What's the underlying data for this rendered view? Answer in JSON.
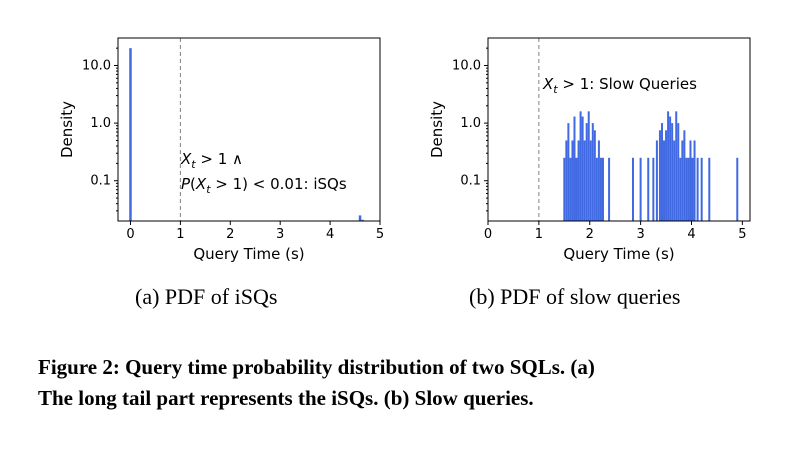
{
  "chart_data": [
    {
      "type": "bar",
      "id": "left",
      "subcaption": "(a)  PDF of iSQs",
      "xlabel": "Query Time (s)",
      "ylabel": "Density",
      "xlim": [
        -0.25,
        5.0
      ],
      "ylim_log": [
        0.02,
        30
      ],
      "yscale": "log",
      "xticks": [
        "0",
        "1",
        "2",
        "3",
        "4",
        "5"
      ],
      "yticks": [
        {
          "value": 10,
          "label": "10.0"
        },
        {
          "value": 1,
          "label": "1.0"
        },
        {
          "value": 0.1,
          "label": "0.1"
        }
      ],
      "threshold_x": 1,
      "annotation": [
        "X_t > 1 ∧",
        "P(X_t > 1) < 0.01: iSQs"
      ],
      "bar_width": 0.05,
      "bars": [
        {
          "x": 0.0,
          "y": 20
        },
        {
          "x": 4.6,
          "y": 0.025
        },
        {
          "x": 4.65,
          "y": 0.021
        }
      ]
    },
    {
      "type": "bar",
      "id": "right",
      "subcaption": "(b)  PDF of slow queries",
      "xlabel": "Query Time (s)",
      "ylabel": "Density",
      "xlim": [
        0,
        5.15
      ],
      "ylim_log": [
        0.02,
        30
      ],
      "yscale": "log",
      "xticks": [
        "0",
        "1",
        "2",
        "3",
        "4",
        "5"
      ],
      "yticks": [
        {
          "value": 10,
          "label": "10.0"
        },
        {
          "value": 1,
          "label": "1.0"
        },
        {
          "value": 0.1,
          "label": "0.1"
        }
      ],
      "threshold_x": 1,
      "annotation": [
        "X_t > 1: Slow Queries"
      ],
      "bar_width": 0.035,
      "bars": [
        {
          "x": 1.5,
          "y": 0.25
        },
        {
          "x": 1.54,
          "y": 0.5
        },
        {
          "x": 1.58,
          "y": 1.0
        },
        {
          "x": 1.62,
          "y": 0.25
        },
        {
          "x": 1.66,
          "y": 0.5
        },
        {
          "x": 1.7,
          "y": 1.3
        },
        {
          "x": 1.74,
          "y": 0.25
        },
        {
          "x": 1.78,
          "y": 0.5
        },
        {
          "x": 1.82,
          "y": 1.6
        },
        {
          "x": 1.86,
          "y": 1.3
        },
        {
          "x": 1.9,
          "y": 0.5
        },
        {
          "x": 1.94,
          "y": 1.0
        },
        {
          "x": 1.98,
          "y": 1.6
        },
        {
          "x": 2.02,
          "y": 0.5
        },
        {
          "x": 2.06,
          "y": 1.0
        },
        {
          "x": 2.1,
          "y": 0.75
        },
        {
          "x": 2.14,
          "y": 0.25
        },
        {
          "x": 2.18,
          "y": 0.5
        },
        {
          "x": 2.22,
          "y": 0.25
        },
        {
          "x": 2.26,
          "y": 0.25
        },
        {
          "x": 2.38,
          "y": 0.25
        },
        {
          "x": 2.85,
          "y": 0.25
        },
        {
          "x": 3.0,
          "y": 0.25
        },
        {
          "x": 3.15,
          "y": 0.25
        },
        {
          "x": 3.25,
          "y": 0.25
        },
        {
          "x": 3.32,
          "y": 0.5
        },
        {
          "x": 3.38,
          "y": 0.75
        },
        {
          "x": 3.42,
          "y": 1.0
        },
        {
          "x": 3.46,
          "y": 0.5
        },
        {
          "x": 3.5,
          "y": 0.75
        },
        {
          "x": 3.54,
          "y": 1.6
        },
        {
          "x": 3.58,
          "y": 1.3
        },
        {
          "x": 3.62,
          "y": 1.0
        },
        {
          "x": 3.66,
          "y": 0.5
        },
        {
          "x": 3.7,
          "y": 1.6
        },
        {
          "x": 3.74,
          "y": 1.0
        },
        {
          "x": 3.78,
          "y": 0.25
        },
        {
          "x": 3.82,
          "y": 0.5
        },
        {
          "x": 3.86,
          "y": 0.75
        },
        {
          "x": 3.9,
          "y": 0.25
        },
        {
          "x": 3.94,
          "y": 0.25
        },
        {
          "x": 3.98,
          "y": 0.5
        },
        {
          "x": 4.02,
          "y": 0.25
        },
        {
          "x": 4.06,
          "y": 0.5
        },
        {
          "x": 4.12,
          "y": 0.25
        },
        {
          "x": 4.2,
          "y": 0.25
        },
        {
          "x": 4.35,
          "y": 0.25
        },
        {
          "x": 4.9,
          "y": 0.25
        }
      ]
    }
  ],
  "caption": {
    "line1": "Figure 2: Query time probability distribution of two SQLs. (a)",
    "line2": "The long tail part represents the iSQs. (b) Slow queries."
  },
  "colors": {
    "bar": "#4169e1",
    "axis": "#000000",
    "threshold": "#808080"
  }
}
